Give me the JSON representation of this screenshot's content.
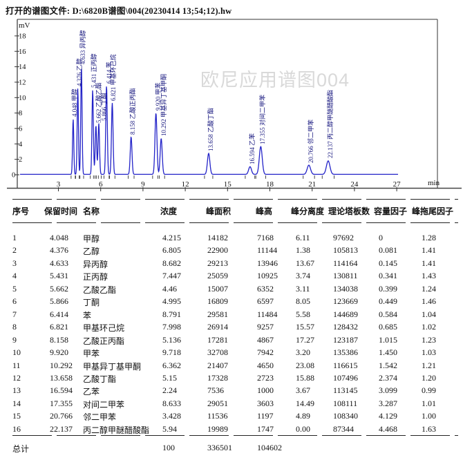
{
  "window": {
    "title": "打开的谱图文件: D:\\6820B谱图\\004(20230414 13;54;12).hw"
  },
  "watermark": "欧尼应用谱图004",
  "chart_data": {
    "type": "line",
    "title": "",
    "x_unit": "min",
    "y_unit": "mV",
    "xlim": [
      0,
      30
    ],
    "ylim": [
      -1.8,
      20
    ],
    "x_ticks": [
      3,
      6,
      9,
      12,
      15,
      18,
      21,
      24,
      27
    ],
    "y_ticks": [
      0,
      2,
      4,
      6,
      8,
      10,
      12,
      14,
      16,
      18
    ],
    "grid": false,
    "curve_color": "#2222c8",
    "label_color": "#15157e",
    "peaks": [
      {
        "rt": 4.048,
        "name": "甲醇",
        "height_mV": 7.168
      },
      {
        "rt": 4.376,
        "name": "乙醇",
        "height_mV": 11.144
      },
      {
        "rt": 4.633,
        "name": "异丙醇",
        "height_mV": 13.946
      },
      {
        "rt": 5.431,
        "name": "正丙醇",
        "height_mV": 10.925
      },
      {
        "rt": 5.662,
        "name": "乙酸乙酯",
        "height_mV": 6.352
      },
      {
        "rt": 5.866,
        "name": "丁酮",
        "height_mV": 6.597
      },
      {
        "rt": 6.414,
        "name": "苯",
        "height_mV": 11.484
      },
      {
        "rt": 6.821,
        "name": "甲基环己烷",
        "height_mV": 9.257
      },
      {
        "rt": 8.158,
        "name": "乙酸正丙酯",
        "height_mV": 4.867
      },
      {
        "rt": 9.92,
        "name": "甲苯",
        "height_mV": 7.942
      },
      {
        "rt": 10.292,
        "name": "甲基异丁基甲酮",
        "height_mV": 4.65
      },
      {
        "rt": 13.658,
        "name": "乙酸丁酯",
        "height_mV": 2.723
      },
      {
        "rt": 16.594,
        "name": "乙苯",
        "height_mV": 1.0
      },
      {
        "rt": 17.355,
        "name": "对间二甲苯",
        "height_mV": 3.603
      },
      {
        "rt": 20.766,
        "name": "邻二甲苯",
        "height_mV": 1.197
      },
      {
        "rt": 22.137,
        "name": "丙二醇甲醚醋酸酯",
        "height_mV": 1.747
      }
    ]
  },
  "table": {
    "columns": [
      "序号",
      "保留时间",
      "名称",
      "浓度",
      "峰面积",
      "峰高",
      "峰分离度",
      "理论塔板数",
      "容量因子",
      "峰拖尾因子"
    ],
    "rows": [
      [
        "1",
        "4.048",
        "甲醇",
        "4.215",
        "14182",
        "7168",
        "6.11",
        "97692",
        "0",
        "1.28"
      ],
      [
        "2",
        "4.376",
        "乙醇",
        "6.805",
        "22900",
        "11144",
        "1.38",
        "105813",
        "0.081",
        "1.41"
      ],
      [
        "3",
        "4.633",
        "异丙醇",
        "8.682",
        "29213",
        "13946",
        "13.67",
        "114164",
        "0.145",
        "1.41"
      ],
      [
        "4",
        "5.431",
        "正丙醇",
        "7.447",
        "25059",
        "10925",
        "3.74",
        "130811",
        "0.341",
        "1.43"
      ],
      [
        "5",
        "5.662",
        "乙酸乙酯",
        "4.46",
        "15007",
        "6352",
        "3.11",
        "134038",
        "0.399",
        "1.24"
      ],
      [
        "6",
        "5.866",
        "丁酮",
        "4.995",
        "16809",
        "6597",
        "8.05",
        "123669",
        "0.449",
        "1.46"
      ],
      [
        "7",
        "6.414",
        "苯",
        "8.791",
        "29581",
        "11484",
        "5.58",
        "144689",
        "0.584",
        "1.04"
      ],
      [
        "8",
        "6.821",
        "甲基环己烷",
        "7.998",
        "26914",
        "9257",
        "15.57",
        "128432",
        "0.685",
        "1.02"
      ],
      [
        "9",
        "8.158",
        "乙酸正丙酯",
        "5.136",
        "17281",
        "4867",
        "17.27",
        "123187",
        "1.015",
        "1.23"
      ],
      [
        "10",
        "9.920",
        "甲苯",
        "9.718",
        "32708",
        "7942",
        "3.20",
        "135386",
        "1.450",
        "1.03"
      ],
      [
        "11",
        "10.292",
        "甲基异丁基甲酮",
        "6.362",
        "21407",
        "4650",
        "23.08",
        "116615",
        "1.542",
        "1.21"
      ],
      [
        "12",
        "13.658",
        "乙酸丁酯",
        "5.15",
        "17328",
        "2723",
        "15.88",
        "107496",
        "2.374",
        "1.20"
      ],
      [
        "13",
        "16.594",
        "乙苯",
        "2.24",
        "7536",
        "1000",
        "3.67",
        "113145",
        "3.099",
        "0.99"
      ],
      [
        "14",
        "17.355",
        "对间二甲苯",
        "8.633",
        "29051",
        "3603",
        "14.49",
        "108111",
        "3.287",
        "1.01"
      ],
      [
        "15",
        "20.766",
        "邻二甲苯",
        "3.428",
        "11536",
        "1197",
        "4.89",
        "108340",
        "4.129",
        "1.00"
      ],
      [
        "16",
        "22.137",
        "丙二醇甲醚醋酸酯",
        "5.94",
        "19989",
        "1747",
        "0.00",
        "87344",
        "4.468",
        "1.63"
      ]
    ],
    "total_label": "总计",
    "totals": {
      "concentration": "100",
      "area": "336501",
      "height": "104602"
    }
  }
}
